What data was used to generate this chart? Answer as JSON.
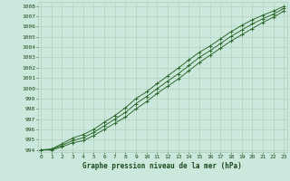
{
  "title": "Graphe pression niveau de la mer (hPa)",
  "x": [
    0,
    1,
    2,
    3,
    4,
    5,
    6,
    7,
    8,
    9,
    10,
    11,
    12,
    13,
    14,
    15,
    16,
    17,
    18,
    19,
    20,
    21,
    22,
    23
  ],
  "line1": [
    994.0,
    994.0,
    994.3,
    994.7,
    994.9,
    995.4,
    996.0,
    996.6,
    997.2,
    998.0,
    998.7,
    999.5,
    1000.2,
    1000.9,
    1001.7,
    1002.5,
    1003.2,
    1003.9,
    1004.6,
    1005.2,
    1005.8,
    1006.4,
    1006.9,
    1007.5
  ],
  "line2": [
    994.0,
    994.05,
    994.45,
    994.9,
    995.2,
    995.7,
    996.35,
    997.0,
    997.65,
    998.5,
    999.2,
    999.95,
    1000.7,
    1001.4,
    1002.2,
    1003.0,
    1003.65,
    1004.35,
    1005.05,
    1005.65,
    1006.25,
    1006.75,
    1007.2,
    1007.75
  ],
  "line3": [
    994.0,
    994.1,
    994.6,
    995.15,
    995.5,
    996.0,
    996.7,
    997.35,
    998.1,
    999.0,
    999.65,
    1000.45,
    1001.2,
    1001.95,
    1002.75,
    1003.5,
    1004.1,
    1004.8,
    1005.5,
    1006.1,
    1006.65,
    1007.1,
    1007.5,
    1007.95
  ],
  "line_color": "#2d6a2d",
  "bg_color": "#cce8dc",
  "grid_color": "#aaccbb",
  "axis_label_color": "#1a4a1a",
  "tick_color": "#1a4a1a",
  "ylim": [
    993.8,
    1008.4
  ],
  "yticks": [
    994,
    995,
    996,
    997,
    998,
    999,
    1000,
    1001,
    1002,
    1003,
    1004,
    1005,
    1006,
    1007,
    1008
  ],
  "xlim": [
    -0.3,
    23.3
  ],
  "xticks": [
    0,
    1,
    2,
    3,
    4,
    5,
    6,
    7,
    8,
    9,
    10,
    11,
    12,
    13,
    14,
    15,
    16,
    17,
    18,
    19,
    20,
    21,
    22,
    23
  ]
}
